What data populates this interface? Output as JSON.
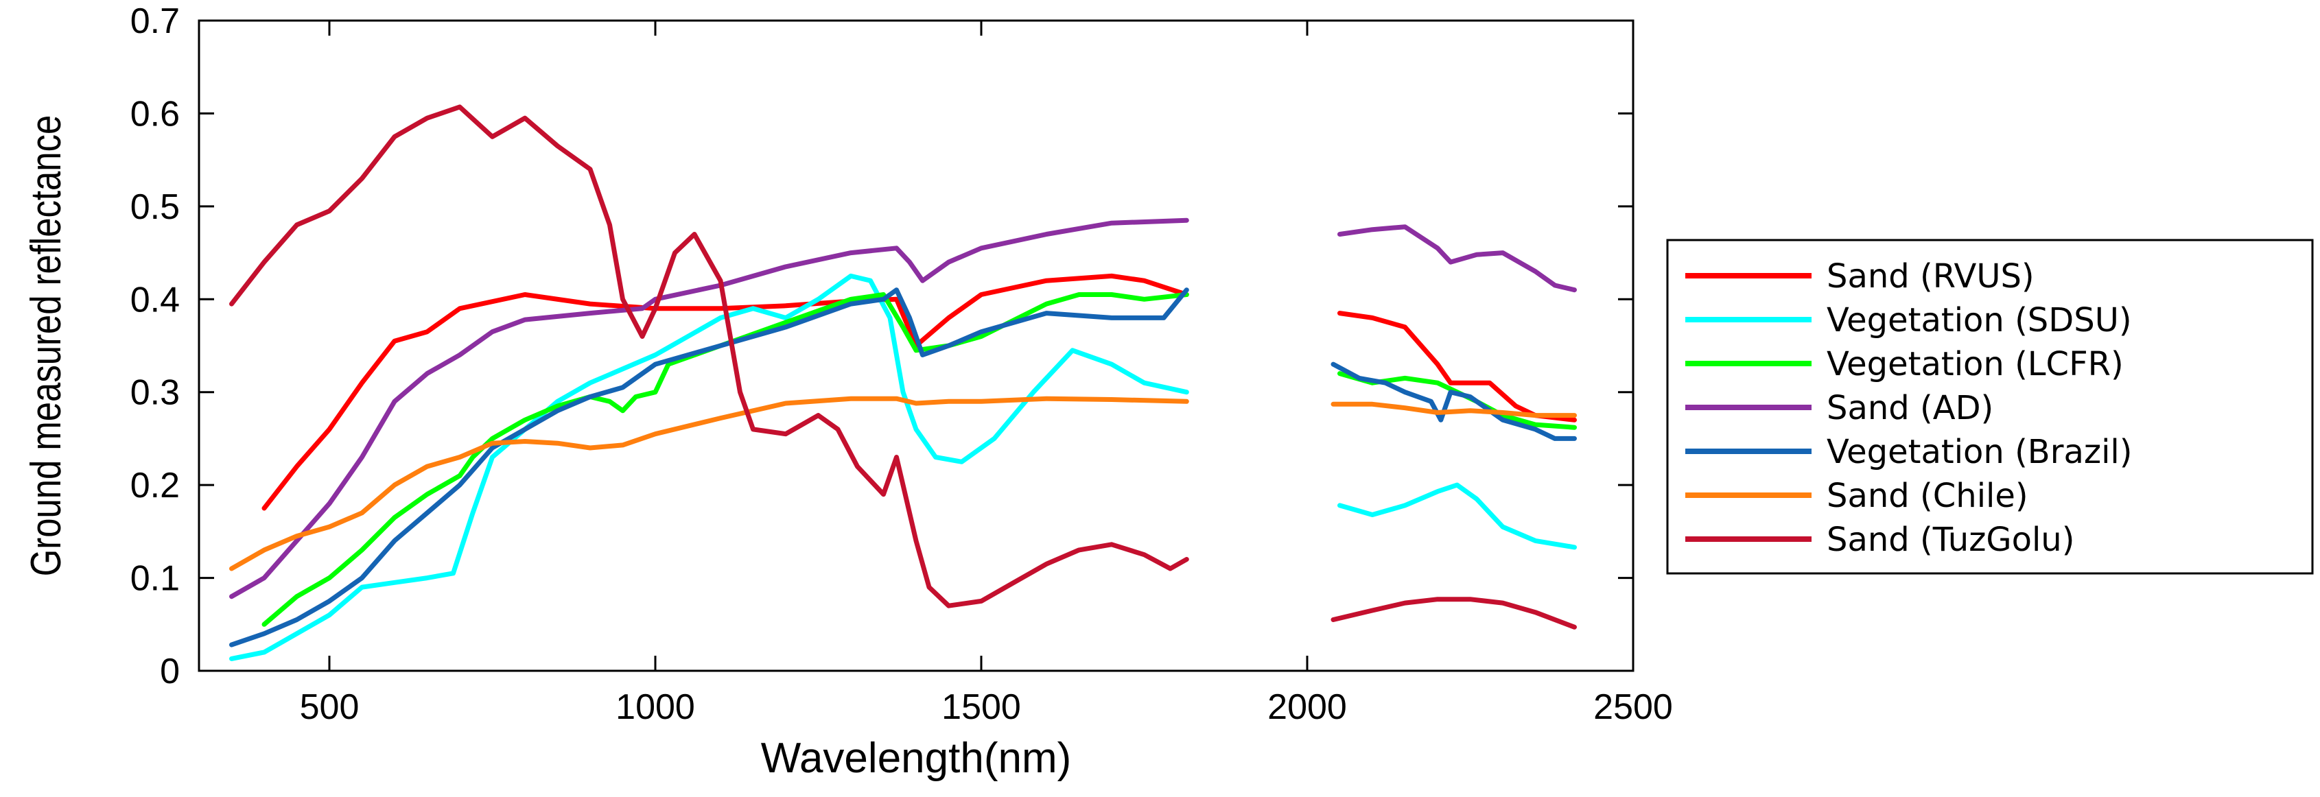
{
  "chart_data": {
    "type": "line",
    "title": "",
    "xlabel": "Wavelength(nm)",
    "ylabel": "Ground measured reflectance",
    "xlim": [
      300,
      2500
    ],
    "ylim": [
      0,
      0.7
    ],
    "xticks": [
      500,
      1000,
      1500,
      2000,
      2500
    ],
    "xtick_labels": [
      "500",
      "1000",
      "1500",
      "2000",
      "2500"
    ],
    "yticks": [
      0,
      0.1,
      0.2,
      0.3,
      0.4,
      0.5,
      0.6,
      0.7
    ],
    "ytick_labels": [
      "0",
      "0.1",
      "0.2",
      "0.3",
      "0.4",
      "0.5",
      "0.6",
      "0.7"
    ],
    "grid": false,
    "legend_position": "right",
    "series": [
      {
        "name": "Sand (RVUS)",
        "color": "#ff0000",
        "segments": [
          [
            [
              400,
              0.175
            ],
            [
              450,
              0.22
            ],
            [
              500,
              0.26
            ],
            [
              550,
              0.31
            ],
            [
              600,
              0.355
            ],
            [
              650,
              0.365
            ],
            [
              700,
              0.39
            ],
            [
              800,
              0.405
            ],
            [
              900,
              0.395
            ],
            [
              1000,
              0.39
            ],
            [
              1100,
              0.39
            ],
            [
              1200,
              0.393
            ],
            [
              1300,
              0.398
            ],
            [
              1370,
              0.4
            ],
            [
              1400,
              0.35
            ],
            [
              1450,
              0.38
            ],
            [
              1500,
              0.405
            ],
            [
              1600,
              0.42
            ],
            [
              1700,
              0.425
            ],
            [
              1750,
              0.42
            ],
            [
              1815,
              0.405
            ]
          ],
          [
            [
              2050,
              0.385
            ],
            [
              2100,
              0.38
            ],
            [
              2150,
              0.37
            ],
            [
              2200,
              0.33
            ],
            [
              2220,
              0.31
            ],
            [
              2280,
              0.31
            ],
            [
              2320,
              0.285
            ],
            [
              2350,
              0.275
            ],
            [
              2410,
              0.27
            ]
          ]
        ]
      },
      {
        "name": "Vegetation (SDSU)",
        "color": "#00ffff",
        "segments": [
          [
            [
              350,
              0.013
            ],
            [
              400,
              0.02
            ],
            [
              450,
              0.04
            ],
            [
              500,
              0.06
            ],
            [
              550,
              0.09
            ],
            [
              600,
              0.095
            ],
            [
              650,
              0.1
            ],
            [
              690,
              0.105
            ],
            [
              720,
              0.17
            ],
            [
              750,
              0.23
            ],
            [
              800,
              0.26
            ],
            [
              850,
              0.29
            ],
            [
              900,
              0.31
            ],
            [
              950,
              0.325
            ],
            [
              1000,
              0.34
            ],
            [
              1050,
              0.36
            ],
            [
              1100,
              0.38
            ],
            [
              1150,
              0.39
            ],
            [
              1200,
              0.38
            ],
            [
              1250,
              0.4
            ],
            [
              1300,
              0.425
            ],
            [
              1330,
              0.42
            ],
            [
              1360,
              0.38
            ],
            [
              1380,
              0.3
            ],
            [
              1400,
              0.26
            ],
            [
              1430,
              0.23
            ],
            [
              1470,
              0.225
            ],
            [
              1520,
              0.25
            ],
            [
              1580,
              0.3
            ],
            [
              1640,
              0.345
            ],
            [
              1700,
              0.33
            ],
            [
              1750,
              0.31
            ],
            [
              1815,
              0.3
            ]
          ],
          [
            [
              2050,
              0.178
            ],
            [
              2100,
              0.168
            ],
            [
              2150,
              0.178
            ],
            [
              2200,
              0.193
            ],
            [
              2230,
              0.2
            ],
            [
              2260,
              0.185
            ],
            [
              2300,
              0.155
            ],
            [
              2350,
              0.14
            ],
            [
              2410,
              0.133
            ]
          ]
        ]
      },
      {
        "name": "Vegetation (LCFR)",
        "color": "#00ff00",
        "segments": [
          [
            [
              400,
              0.05
            ],
            [
              450,
              0.08
            ],
            [
              500,
              0.1
            ],
            [
              550,
              0.13
            ],
            [
              600,
              0.165
            ],
            [
              650,
              0.19
            ],
            [
              700,
              0.21
            ],
            [
              720,
              0.23
            ],
            [
              750,
              0.25
            ],
            [
              800,
              0.27
            ],
            [
              850,
              0.285
            ],
            [
              900,
              0.295
            ],
            [
              930,
              0.29
            ],
            [
              950,
              0.28
            ],
            [
              970,
              0.295
            ],
            [
              1000,
              0.3
            ],
            [
              1020,
              0.33
            ],
            [
              1100,
              0.35
            ],
            [
              1200,
              0.375
            ],
            [
              1300,
              0.4
            ],
            [
              1350,
              0.405
            ],
            [
              1380,
              0.37
            ],
            [
              1400,
              0.345
            ],
            [
              1450,
              0.35
            ],
            [
              1500,
              0.36
            ],
            [
              1600,
              0.395
            ],
            [
              1650,
              0.405
            ],
            [
              1700,
              0.405
            ],
            [
              1750,
              0.4
            ],
            [
              1815,
              0.405
            ]
          ],
          [
            [
              2050,
              0.32
            ],
            [
              2100,
              0.31
            ],
            [
              2150,
              0.315
            ],
            [
              2200,
              0.31
            ],
            [
              2230,
              0.3
            ],
            [
              2260,
              0.29
            ],
            [
              2300,
              0.275
            ],
            [
              2350,
              0.265
            ],
            [
              2410,
              0.262
            ]
          ]
        ]
      },
      {
        "name": "Sand (AD)",
        "color": "#8b2fa0",
        "segments": [
          [
            [
              350,
              0.08
            ],
            [
              400,
              0.1
            ],
            [
              450,
              0.14
            ],
            [
              500,
              0.18
            ],
            [
              550,
              0.23
            ],
            [
              600,
              0.29
            ],
            [
              650,
              0.32
            ],
            [
              700,
              0.34
            ],
            [
              750,
              0.365
            ],
            [
              800,
              0.378
            ],
            [
              900,
              0.385
            ],
            [
              980,
              0.39
            ],
            [
              1000,
              0.4
            ],
            [
              1100,
              0.415
            ],
            [
              1200,
              0.435
            ],
            [
              1300,
              0.45
            ],
            [
              1370,
              0.455
            ],
            [
              1390,
              0.44
            ],
            [
              1410,
              0.42
            ],
            [
              1450,
              0.44
            ],
            [
              1500,
              0.455
            ],
            [
              1600,
              0.47
            ],
            [
              1700,
              0.482
            ],
            [
              1815,
              0.485
            ]
          ],
          [
            [
              2050,
              0.47
            ],
            [
              2100,
              0.475
            ],
            [
              2150,
              0.478
            ],
            [
              2200,
              0.455
            ],
            [
              2220,
              0.44
            ],
            [
              2260,
              0.448
            ],
            [
              2300,
              0.45
            ],
            [
              2350,
              0.43
            ],
            [
              2380,
              0.415
            ],
            [
              2410,
              0.41
            ]
          ]
        ]
      },
      {
        "name": "Vegetation (Brazil)",
        "color": "#1564b3",
        "segments": [
          [
            [
              350,
              0.028
            ],
            [
              400,
              0.04
            ],
            [
              450,
              0.055
            ],
            [
              500,
              0.075
            ],
            [
              550,
              0.1
            ],
            [
              600,
              0.14
            ],
            [
              650,
              0.17
            ],
            [
              700,
              0.2
            ],
            [
              750,
              0.24
            ],
            [
              800,
              0.26
            ],
            [
              850,
              0.28
            ],
            [
              900,
              0.295
            ],
            [
              950,
              0.305
            ],
            [
              1000,
              0.33
            ],
            [
              1100,
              0.35
            ],
            [
              1200,
              0.37
            ],
            [
              1300,
              0.395
            ],
            [
              1350,
              0.4
            ],
            [
              1370,
              0.41
            ],
            [
              1390,
              0.38
            ],
            [
              1410,
              0.34
            ],
            [
              1450,
              0.35
            ],
            [
              1500,
              0.365
            ],
            [
              1600,
              0.385
            ],
            [
              1700,
              0.38
            ],
            [
              1780,
              0.38
            ],
            [
              1815,
              0.41
            ]
          ],
          [
            [
              2040,
              0.33
            ],
            [
              2080,
              0.315
            ],
            [
              2120,
              0.31
            ],
            [
              2150,
              0.3
            ],
            [
              2190,
              0.29
            ],
            [
              2205,
              0.27
            ],
            [
              2220,
              0.3
            ],
            [
              2250,
              0.295
            ],
            [
              2300,
              0.27
            ],
            [
              2350,
              0.26
            ],
            [
              2380,
              0.25
            ],
            [
              2410,
              0.25
            ]
          ]
        ]
      },
      {
        "name": "Sand (Chile)",
        "color": "#ff7f0e",
        "segments": [
          [
            [
              350,
              0.11
            ],
            [
              400,
              0.13
            ],
            [
              450,
              0.145
            ],
            [
              500,
              0.155
            ],
            [
              550,
              0.17
            ],
            [
              600,
              0.2
            ],
            [
              650,
              0.22
            ],
            [
              700,
              0.23
            ],
            [
              750,
              0.245
            ],
            [
              800,
              0.247
            ],
            [
              850,
              0.245
            ],
            [
              900,
              0.24
            ],
            [
              950,
              0.243
            ],
            [
              1000,
              0.255
            ],
            [
              1100,
              0.272
            ],
            [
              1200,
              0.288
            ],
            [
              1300,
              0.293
            ],
            [
              1370,
              0.293
            ],
            [
              1400,
              0.288
            ],
            [
              1450,
              0.29
            ],
            [
              1500,
              0.29
            ],
            [
              1600,
              0.293
            ],
            [
              1700,
              0.292
            ],
            [
              1815,
              0.29
            ]
          ],
          [
            [
              2040,
              0.287
            ],
            [
              2100,
              0.287
            ],
            [
              2150,
              0.283
            ],
            [
              2200,
              0.278
            ],
            [
              2250,
              0.28
            ],
            [
              2300,
              0.278
            ],
            [
              2350,
              0.275
            ],
            [
              2410,
              0.275
            ]
          ]
        ]
      },
      {
        "name": "Sand (TuzGolu)",
        "color": "#c4102e",
        "segments": [
          [
            [
              350,
              0.395
            ],
            [
              400,
              0.44
            ],
            [
              450,
              0.48
            ],
            [
              500,
              0.495
            ],
            [
              550,
              0.53
            ],
            [
              600,
              0.575
            ],
            [
              650,
              0.595
            ],
            [
              700,
              0.607
            ],
            [
              750,
              0.575
            ],
            [
              800,
              0.595
            ],
            [
              850,
              0.565
            ],
            [
              900,
              0.54
            ],
            [
              930,
              0.48
            ],
            [
              950,
              0.4
            ],
            [
              980,
              0.36
            ],
            [
              1000,
              0.39
            ],
            [
              1030,
              0.45
            ],
            [
              1060,
              0.47
            ],
            [
              1100,
              0.42
            ],
            [
              1130,
              0.3
            ],
            [
              1150,
              0.26
            ],
            [
              1200,
              0.255
            ],
            [
              1250,
              0.275
            ],
            [
              1280,
              0.26
            ],
            [
              1310,
              0.22
            ],
            [
              1350,
              0.19
            ],
            [
              1370,
              0.23
            ],
            [
              1380,
              0.2
            ],
            [
              1400,
              0.14
            ],
            [
              1420,
              0.09
            ],
            [
              1450,
              0.07
            ],
            [
              1500,
              0.075
            ],
            [
              1550,
              0.095
            ],
            [
              1600,
              0.115
            ],
            [
              1650,
              0.13
            ],
            [
              1700,
              0.136
            ],
            [
              1750,
              0.125
            ],
            [
              1790,
              0.11
            ],
            [
              1815,
              0.12
            ]
          ],
          [
            [
              2040,
              0.055
            ],
            [
              2100,
              0.065
            ],
            [
              2150,
              0.073
            ],
            [
              2200,
              0.077
            ],
            [
              2250,
              0.077
            ],
            [
              2300,
              0.073
            ],
            [
              2350,
              0.063
            ],
            [
              2410,
              0.047
            ]
          ]
        ]
      }
    ]
  }
}
